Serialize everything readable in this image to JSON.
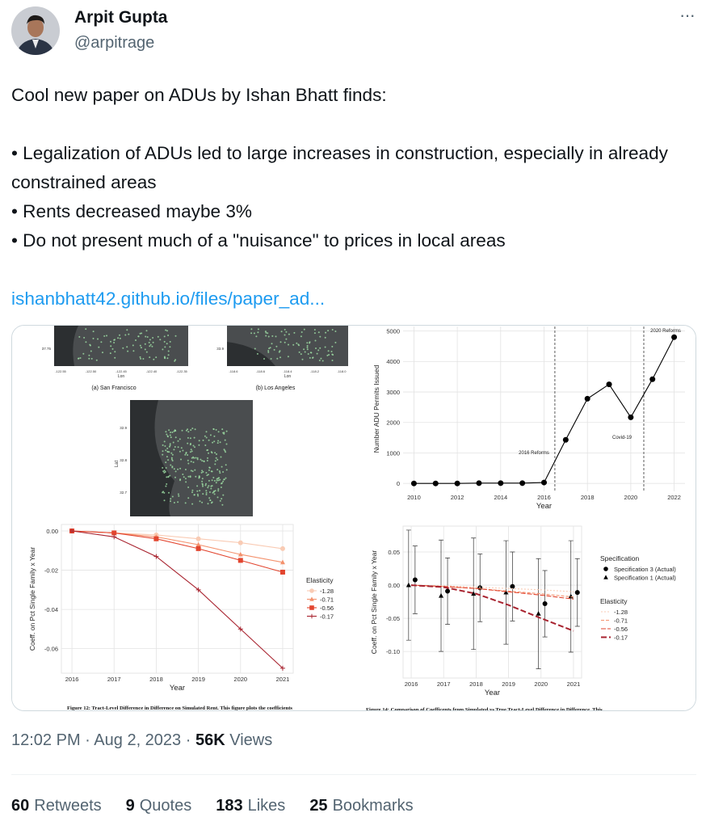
{
  "tweet": {
    "name": "Arpit Gupta",
    "handle": "@arpitrage",
    "more": "···",
    "intro": "Cool new paper on ADUs by Ishan Bhatt finds:",
    "bullets": [
      "• Legalization of ADUs led to large increases in construction, especially in already constrained areas",
      "• Rents decreased maybe 3%",
      "• Do not present much of a \"nuisance\" to prices in local areas"
    ],
    "link": "ishanbhatt42.github.io/files/paper_ad...",
    "time": "12:02 PM",
    "separator": "·",
    "date": "Aug 2, 2023",
    "views_count": "56K",
    "views_label": "Views",
    "stats": [
      {
        "count": 60,
        "label": "Retweets"
      },
      {
        "count": 9,
        "label": "Quotes"
      },
      {
        "count": 183,
        "label": "Likes"
      },
      {
        "count": 25,
        "label": "Bookmarks"
      }
    ]
  },
  "media": {
    "maps": [
      {
        "caption": "(a) San Francisco",
        "lat_ticks": [
          "37.75"
        ],
        "lon_ticks": [
          "-122.55",
          "-122.50",
          "-122.45",
          "-122.40",
          "-122.35"
        ],
        "lon_label": "Lon"
      },
      {
        "caption": "(b) Los Angeles",
        "lat_ticks": [
          "33.9"
        ],
        "lon_ticks": [
          "-118.6",
          "-118.6",
          "-118.4",
          "-118.2",
          "-118.0"
        ],
        "lon_label": "Lon"
      },
      {
        "lat_ticks": [
          "32.9",
          "32.8",
          "32.7"
        ],
        "lat_label": "Lat"
      }
    ],
    "captions": [
      "Figure 12: Tract-Level Difference in Difference on Simulated Rent. This figure plots the coefficients",
      "Figure 14: Comparison of Coefficents from Simulated vs True Tract-Level Difference in Difference. This"
    ],
    "charts": [
      {
        "type": "line",
        "x_label": "Year",
        "y_label": "Number ADU Permits Issued",
        "x": [
          2010,
          2011,
          2012,
          2013,
          2014,
          2015,
          2016,
          2017,
          2018,
          2019,
          2020,
          2021,
          2022
        ],
        "xlim": [
          2009.5,
          2022.5
        ],
        "xticks": [
          2010,
          2012,
          2014,
          2016,
          2018,
          2020,
          2022
        ],
        "ylim": [
          -260,
          5150
        ],
        "yticks": [
          0,
          1000,
          2000,
          3000,
          4000,
          5000
        ],
        "grid": true,
        "vlines": [
          2016.5,
          2020.6
        ],
        "annotations": [
          "2016 Reforms",
          "Covid-19",
          "2020 Reforms"
        ],
        "series": [
          {
            "name": "Permits",
            "color": "#000000",
            "marker": "circle",
            "values": [
              0,
              0,
              0,
              10,
              10,
              10,
              30,
              1430,
              2780,
              3250,
              2170,
              3420,
              4800
            ]
          }
        ],
        "legends": []
      },
      {
        "type": "line",
        "x_label": "Year",
        "y_label": "Coeff. on Pct Single Family x Year",
        "x": [
          2016,
          2017,
          2018,
          2019,
          2020,
          2021
        ],
        "xlim": [
          2015.75,
          2021.25
        ],
        "xticks": [
          2016,
          2017,
          2018,
          2019,
          2020,
          2021
        ],
        "ylim": [
          -0.0725,
          0.0033
        ],
        "yticks": [
          {
            "value": 0,
            "label": "0.00"
          },
          -0.02,
          -0.04,
          -0.06
        ],
        "grid": true,
        "series": [
          {
            "name": "-1.28",
            "color": "#f9cbb4",
            "marker": "circle",
            "values": [
              0,
              -0.001,
              -0.002,
              -0.004,
              -0.006,
              -0.009
            ]
          },
          {
            "name": "-0.71",
            "color": "#f4926e",
            "marker": "triangle",
            "values": [
              0,
              -0.001,
              -0.003,
              -0.007,
              -0.012,
              -0.016
            ]
          },
          {
            "name": "-0.56",
            "color": "#e2452f",
            "marker": "square",
            "values": [
              0,
              -0.001,
              -0.004,
              -0.009,
              -0.015,
              -0.021
            ]
          },
          {
            "name": "-0.17",
            "color": "#a8232f",
            "marker": "plus",
            "values": [
              0,
              -0.003,
              -0.013,
              -0.03,
              -0.05,
              -0.07
            ]
          }
        ],
        "legends": [
          {
            "title": "Elasticity",
            "series": [
              0,
              1,
              2,
              3
            ]
          }
        ]
      },
      {
        "type": "line",
        "x_label": "Year",
        "y_label": "Coeff. on Pct Single Family x Year",
        "x": [
          2016,
          2017,
          2018,
          2019,
          2020,
          2021
        ],
        "xlim": [
          2015.75,
          2021.25
        ],
        "xticks": [
          2016,
          2017,
          2018,
          2019,
          2020,
          2021
        ],
        "ylim": [
          -0.14,
          0.089
        ],
        "yticks": [
          0.05,
          {
            "value": 0,
            "label": "0.00"
          },
          -0.05,
          {
            "value": -0.1,
            "label": "-0.10"
          }
        ],
        "grid": true,
        "series": [
          {
            "name": "Specification 3 (Actual)",
            "color": "#000000",
            "marker": "circle",
            "line": false,
            "x": [
              2016.12,
              2017.12,
              2018.12,
              2019.12,
              2020.12,
              2021.12
            ],
            "values": [
              0.008,
              -0.009,
              -0.004,
              -0.002,
              -0.028,
              -0.011
            ],
            "errors": [
              0.051,
              0.05,
              0.051,
              0.052,
              0.05,
              0.051
            ]
          },
          {
            "name": "Specification 1 (Actual)",
            "color": "#000000",
            "marker": "triangle",
            "line": false,
            "x": [
              2015.92,
              2016.92,
              2017.92,
              2018.92,
              2019.92,
              2020.92
            ],
            "values": [
              0,
              -0.016,
              -0.013,
              -0.011,
              -0.043,
              -0.017
            ],
            "errors": [
              0.083,
              0.084,
              0.084,
              0.078,
              0.083,
              0.084
            ]
          },
          {
            "name": "-1.28",
            "color": "#f9cbb4",
            "dash": "2 2",
            "values": [
              0,
              -0.001,
              -0.003,
              -0.005,
              -0.007,
              -0.01
            ]
          },
          {
            "name": "-0.71",
            "color": "#f4926e",
            "dash": "4 2",
            "values": [
              0,
              -0.002,
              -0.005,
              -0.009,
              -0.013,
              -0.018
            ]
          },
          {
            "name": "-0.56",
            "color": "#e2452f",
            "dash": "6 2",
            "values": [
              0,
              -0.002,
              -0.005,
              -0.01,
              -0.015,
              -0.021
            ]
          },
          {
            "name": "-0.17",
            "color": "#a8232f",
            "dash": "7 3",
            "width": 2,
            "values": [
              0,
              -0.003,
              -0.013,
              -0.03,
              -0.05,
              -0.069
            ]
          }
        ],
        "legends": [
          {
            "title": "Specification",
            "series": [
              0,
              1
            ]
          },
          {
            "title": "Elasticity",
            "series": [
              2,
              3,
              4,
              5
            ]
          }
        ]
      }
    ]
  }
}
